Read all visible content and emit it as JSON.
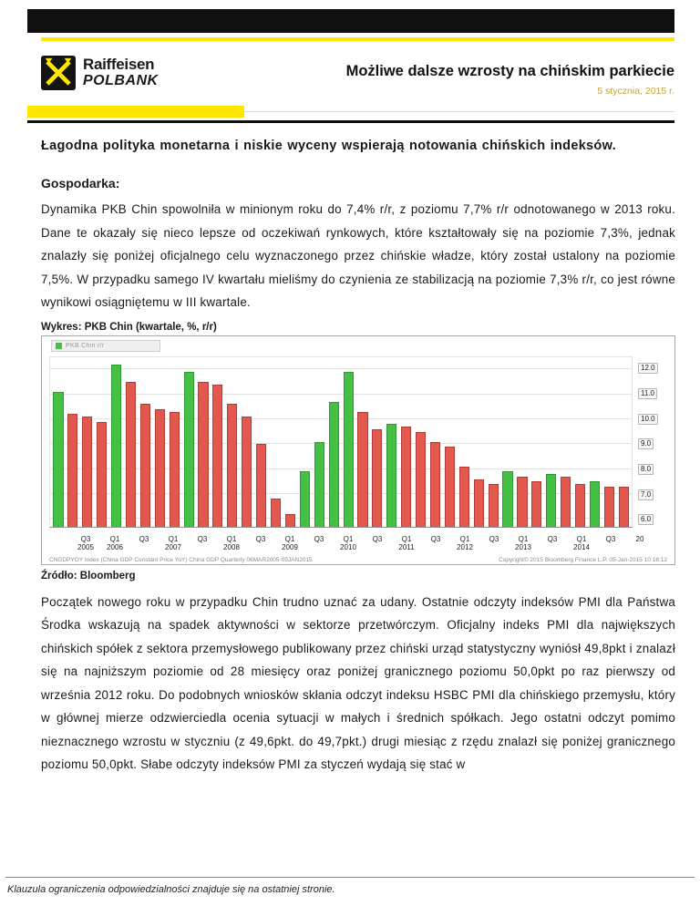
{
  "header": {
    "brand_line1": "Raiffeisen",
    "brand_line2": "POLBANK",
    "title": "Możliwe dalsze wzrosty na chińskim parkiecie",
    "date": "5 stycznia, 2015 r."
  },
  "lead": "Łagodna polityka monetarna i niskie wyceny wspierają notowania chińskich indeksów.",
  "sections": {
    "economy_heading": "Gospodarka:",
    "paragraph1": "Dynamika PKB Chin spowolniła w minionym roku do 7,4% r/r, z poziomu 7,7% r/r odnotowanego w 2013 roku. Dane te okazały się nieco lepsze od oczekiwań rynkowych, które kształtowały się na poziomie 7,3%, jednak znalazły się poniżej oficjalnego celu wyznaczonego przez chińskie władze, który został ustalony na poziomie 7,5%. W przypadku samego IV kwartału mieliśmy do czynienia ze stabilizacją na poziomie 7,3% r/r, co jest równe wynikowi osiągniętemu w III kwartale.",
    "paragraph2": "Początek nowego roku w przypadku Chin trudno uznać za udany. Ostatnie odczyty indeksów PMI dla Państwa Środka wskazują na spadek aktywności w sektorze przetwórczym. Oficjalny indeks PMI dla największych chińskich spółek z sektora przemysłowego publikowany przez chiński urząd statystyczny wyniósł 49,8pkt i znalazł się na najniższym poziomie od 28 miesięcy oraz poniżej granicznego poziomu 50,0pkt po raz pierwszy od września 2012 roku. Do podobnych wniosków skłania odczyt indeksu HSBC PMI dla chińskiego przemysłu, który w głównej mierze odzwierciedla ocenia sytuacji w małych i średnich spółkach. Jego ostatni odczyt pomimo nieznacznego wzrostu w styczniu (z 49,6pkt. do 49,7pkt.) drugi miesiąc z rzędu znalazł się poniżej granicznego poziomu 50,0pkt. Słabe odczyty indeksów PMI za styczeń wydają się stać w"
  },
  "chart": {
    "caption": "Wykres: PKB Chin (kwartale, %, r/r)",
    "source": "Źródło: Bloomberg"
  },
  "chart_data": {
    "type": "bar",
    "title": "PKB Chin (kwartale, %, r/r)",
    "x": [
      "Q1 2005",
      "Q2 2005",
      "Q3 2005",
      "Q4 2005",
      "Q1 2006",
      "Q2 2006",
      "Q3 2006",
      "Q4 2006",
      "Q1 2007",
      "Q2 2007",
      "Q3 2007",
      "Q4 2007",
      "Q1 2008",
      "Q2 2008",
      "Q3 2008",
      "Q4 2008",
      "Q1 2009",
      "Q2 2009",
      "Q3 2009",
      "Q4 2009",
      "Q1 2010",
      "Q2 2010",
      "Q3 2010",
      "Q4 2010",
      "Q1 2011",
      "Q2 2011",
      "Q3 2011",
      "Q4 2011",
      "Q1 2012",
      "Q2 2012",
      "Q3 2012",
      "Q4 2012",
      "Q1 2013",
      "Q2 2013",
      "Q3 2013",
      "Q4 2013",
      "Q1 2014",
      "Q2 2014",
      "Q3 2014",
      "Q4 2014"
    ],
    "values": [
      11.1,
      10.2,
      10.1,
      9.9,
      12.2,
      11.5,
      10.6,
      10.4,
      10.3,
      11.9,
      11.5,
      11.4,
      10.6,
      10.1,
      9.0,
      6.8,
      6.2,
      7.9,
      9.1,
      10.7,
      11.9,
      10.3,
      9.6,
      9.8,
      9.7,
      9.5,
      9.1,
      8.9,
      8.1,
      7.6,
      7.4,
      7.9,
      7.7,
      7.5,
      7.8,
      7.7,
      7.4,
      7.5,
      7.3,
      7.3
    ],
    "ylim": [
      5.7,
      12.5
    ],
    "yticks": [
      6,
      7,
      8,
      9,
      10,
      11,
      12
    ],
    "ytick_labels": [
      "6.0",
      "7.0",
      "8.0",
      "9.0",
      "10.0",
      "11.0",
      "12.0"
    ],
    "xticks": [
      {
        "i": 2,
        "q": "Q3",
        "year": "2005"
      },
      {
        "i": 4,
        "q": "Q1",
        "year": "2006"
      },
      {
        "i": 6,
        "q": "Q3",
        "year": ""
      },
      {
        "i": 8,
        "q": "Q1",
        "year": "2007"
      },
      {
        "i": 10,
        "q": "Q3",
        "year": ""
      },
      {
        "i": 12,
        "q": "Q1",
        "year": "2008"
      },
      {
        "i": 14,
        "q": "Q3",
        "year": ""
      },
      {
        "i": 16,
        "q": "Q1",
        "year": "2009"
      },
      {
        "i": 18,
        "q": "Q3",
        "year": ""
      },
      {
        "i": 20,
        "q": "Q1",
        "year": "2010"
      },
      {
        "i": 22,
        "q": "Q3",
        "year": ""
      },
      {
        "i": 24,
        "q": "Q1",
        "year": "2011"
      },
      {
        "i": 26,
        "q": "Q3",
        "year": ""
      },
      {
        "i": 28,
        "q": "Q1",
        "year": "2012"
      },
      {
        "i": 30,
        "q": "Q3",
        "year": ""
      },
      {
        "i": 32,
        "q": "Q1",
        "year": "2013"
      },
      {
        "i": 34,
        "q": "Q3",
        "year": ""
      },
      {
        "i": 36,
        "q": "Q1",
        "year": "2014"
      },
      {
        "i": 38,
        "q": "Q3",
        "year": ""
      },
      {
        "i": 40,
        "q": "20",
        "year": ""
      }
    ],
    "bar_color_rule": "green when value rose vs previous quarter, red otherwise",
    "up_color": "#44c144",
    "down_color": "#e2574e",
    "up_border": "#2f9a2f",
    "down_border": "#b23d35",
    "legend_label": "PKB Chin r/r",
    "grid": "horizontal",
    "legend_position": "top-left",
    "footer_left": "CNGDPYOY Index (China GDP Constant Price YoY) China GDP Quarterly 06MAR2005-05JAN2015",
    "footer_right": "Copyright© 2015 Bloomberg Finance L.P.  05-Jan-2015 10:18:12"
  },
  "colors": {
    "brand_yellow": "#ffe600",
    "brand_black": "#101010",
    "date_gold": "#c3a243",
    "bar_up_green": "#44c144",
    "bar_down_red": "#e2574e"
  },
  "footer": {
    "disclaimer": "Klauzula ograniczenia odpowiedzialności znajduje się na ostatniej stronie."
  }
}
